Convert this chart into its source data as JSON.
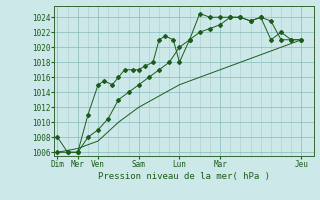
{
  "background_color": "#cde8e8",
  "grid_major_color": "#88bbbb",
  "grid_minor_color": "#aacccc",
  "line_color": "#1a5c1a",
  "ylim": [
    1005.5,
    1025.5
  ],
  "yticks": [
    1006,
    1008,
    1010,
    1012,
    1014,
    1016,
    1018,
    1020,
    1022,
    1024
  ],
  "xlabel": "Pression niveau de la mer( hPa )",
  "xlim": [
    -0.15,
    12.6
  ],
  "x_major_ticks": [
    0,
    1,
    2,
    4,
    6,
    8,
    12
  ],
  "x_major_labels": [
    "Dim",
    "Mer",
    "Ven",
    "Sam",
    "Lun",
    "Mar",
    "Jeu"
  ],
  "x_minor_ticks": [
    0.5,
    1.5,
    2.5,
    3.0,
    3.5,
    4.5,
    5.0,
    5.5,
    6.5,
    7.0,
    7.5,
    8.5,
    9.0,
    9.5,
    10.0,
    10.5,
    11.0,
    11.5
  ],
  "series1_x": [
    0,
    0.5,
    1.0,
    1.5,
    2.0,
    2.3,
    2.7,
    3.0,
    3.3,
    3.7,
    4.0,
    4.3,
    4.7,
    5.0,
    5.3,
    5.7,
    6.0,
    6.5,
    7.0,
    7.5,
    8.0,
    8.5,
    9.0,
    9.5,
    10.0,
    10.5,
    11.0,
    11.5,
    12.0
  ],
  "series1_y": [
    1008,
    1006,
    1006,
    1011,
    1015,
    1015.5,
    1015,
    1016,
    1017,
    1017,
    1017,
    1017.5,
    1018,
    1021,
    1021.5,
    1021,
    1018,
    1021,
    1024.5,
    1024,
    1024,
    1024,
    1024,
    1023.5,
    1024,
    1021,
    1022,
    1021,
    1021
  ],
  "series2_x": [
    0,
    0.5,
    1.0,
    1.5,
    2.0,
    2.5,
    3.0,
    3.5,
    4.0,
    4.5,
    5.0,
    5.5,
    6.0,
    6.5,
    7.0,
    7.5,
    8.0,
    8.5,
    9.0,
    9.5,
    10.0,
    10.5,
    11.0,
    11.5,
    12.0
  ],
  "series2_y": [
    1006,
    1006,
    1006,
    1008,
    1009,
    1010.5,
    1013,
    1014,
    1015,
    1016,
    1017,
    1018,
    1020,
    1021,
    1022,
    1022.5,
    1023,
    1024,
    1024,
    1023.5,
    1024,
    1023.5,
    1021,
    1021,
    1021
  ],
  "series3_x": [
    0,
    1,
    2,
    3,
    4,
    5,
    6,
    7,
    8,
    9,
    10,
    11,
    12
  ],
  "series3_y": [
    1006,
    1006.5,
    1007.5,
    1010,
    1012,
    1013.5,
    1015,
    1016,
    1017,
    1018,
    1019,
    1020,
    1021
  ]
}
